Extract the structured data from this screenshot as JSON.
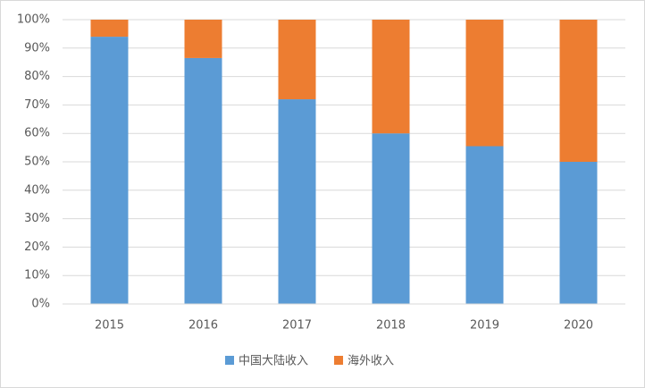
{
  "chart_data": {
    "type": "stacked_bar",
    "categories": [
      "2015",
      "2016",
      "2017",
      "2018",
      "2019",
      "2020"
    ],
    "series": [
      {
        "name": "中国大陆收入",
        "color": "#5b9bd5",
        "values": [
          94,
          86.5,
          72,
          60,
          55.5,
          50
        ]
      },
      {
        "name": "海外收入",
        "color": "#ed7d31",
        "values": [
          6,
          13.5,
          28,
          40,
          44.5,
          50
        ]
      }
    ],
    "ylim": [
      0,
      100
    ],
    "yticks": [
      {
        "value": 0,
        "label": "0%"
      },
      {
        "value": 10,
        "label": "10%"
      },
      {
        "value": 20,
        "label": "20%"
      },
      {
        "value": 30,
        "label": "30%"
      },
      {
        "value": 40,
        "label": "40%"
      },
      {
        "value": 50,
        "label": "50%"
      },
      {
        "value": 60,
        "label": "60%"
      },
      {
        "value": 70,
        "label": "70%"
      },
      {
        "value": 80,
        "label": "80%"
      },
      {
        "value": 90,
        "label": "90%"
      },
      {
        "value": 100,
        "label": "100%"
      }
    ],
    "grid": true,
    "legend": "bottom"
  }
}
